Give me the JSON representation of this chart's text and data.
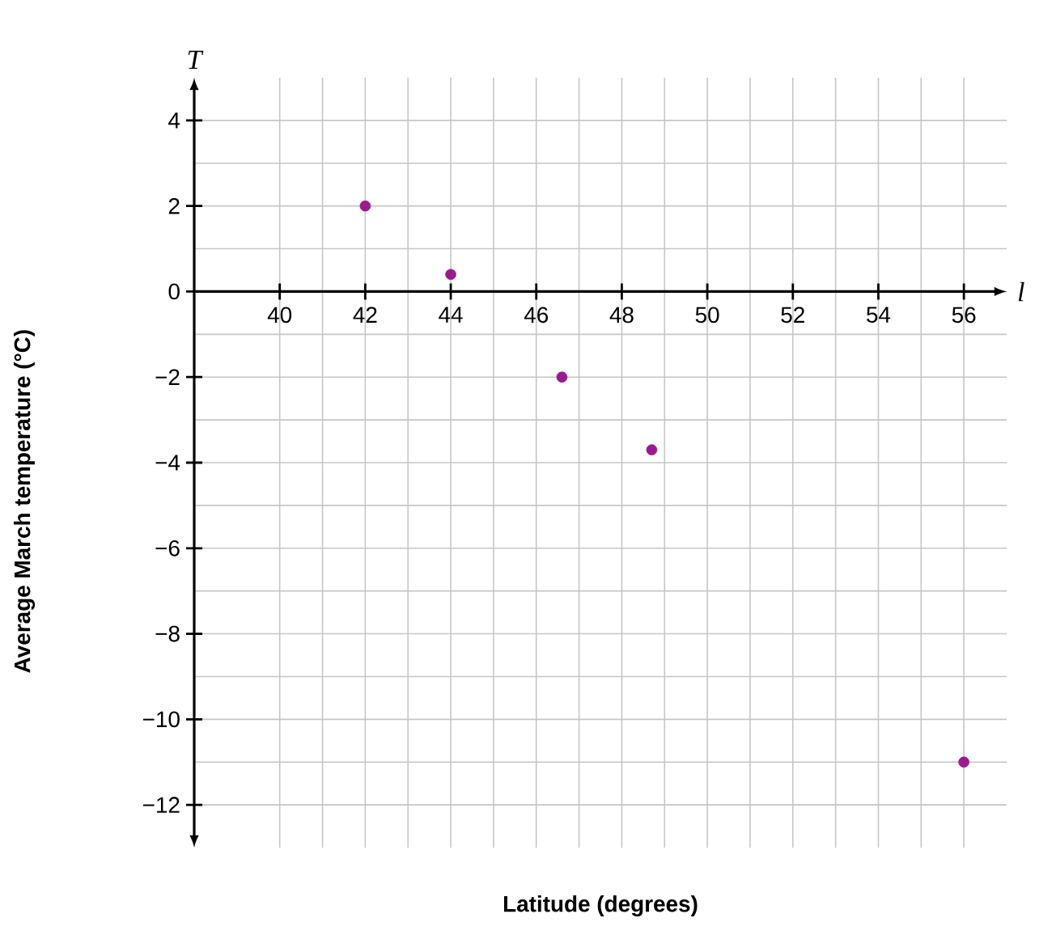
{
  "chart_data": {
    "type": "scatter",
    "xlabel": "Latitude (degrees)",
    "ylabel": "Average March temperature (°C)",
    "annotations": [
      "T",
      "l"
    ],
    "x": [
      42,
      44,
      46.6,
      48.7,
      56
    ],
    "values": [
      2,
      0.4,
      -2,
      -3.7,
      -11
    ],
    "color": "#9b1b8e",
    "marker": "circle",
    "grid": true,
    "xlim": [
      38,
      57
    ],
    "ylim": [
      -13,
      5
    ],
    "xticks": [
      40,
      42,
      44,
      46,
      48,
      50,
      52,
      54,
      56
    ],
    "yticks": [
      {
        "value": -12,
        "label": "−12"
      },
      {
        "value": -10,
        "label": "−10"
      },
      {
        "value": -8,
        "label": "−8"
      },
      {
        "value": -6,
        "label": "−6"
      },
      {
        "value": -4,
        "label": "−4"
      },
      {
        "value": -2,
        "label": "−2"
      },
      0,
      2,
      4
    ]
  }
}
